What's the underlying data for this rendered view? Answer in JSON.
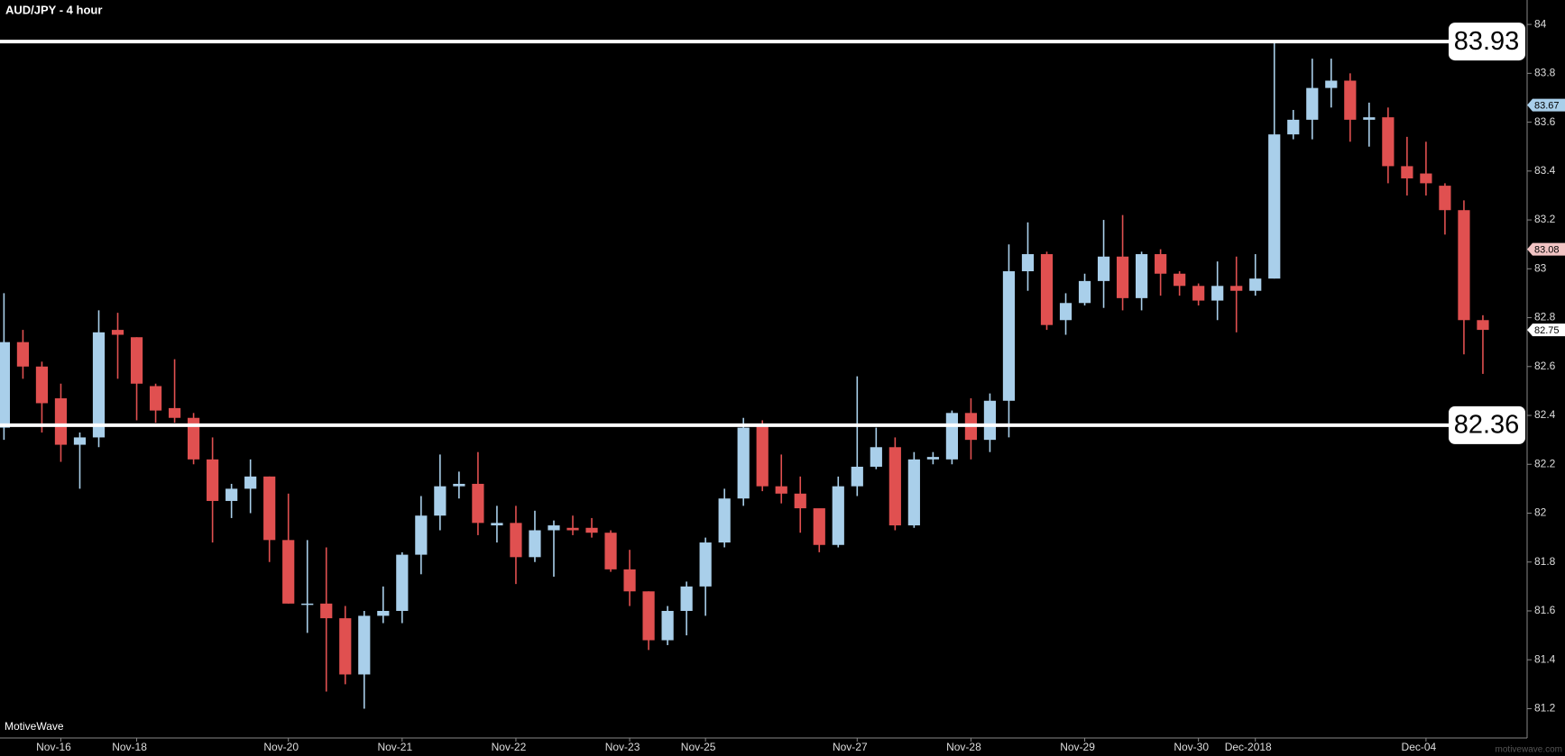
{
  "chart_data": {
    "type": "candlestick",
    "title": "AUD/JPY - 4 hour",
    "watermark": "MotiveWave",
    "credit": "motivewave.com",
    "categories": [
      null,
      null,
      null,
      "Nov-16",
      null,
      null,
      null,
      "Nov-18",
      null,
      null,
      null,
      null,
      null,
      null,
      null,
      "Nov-20",
      null,
      null,
      null,
      null,
      null,
      "Nov-21",
      null,
      null,
      null,
      null,
      null,
      "Nov-22",
      null,
      null,
      null,
      null,
      null,
      "Nov-23",
      null,
      null,
      null,
      "Nov-25",
      null,
      null,
      null,
      null,
      null,
      null,
      null,
      "Nov-27",
      null,
      null,
      null,
      null,
      null,
      "Nov-28",
      null,
      null,
      null,
      null,
      null,
      "Nov-29",
      null,
      null,
      null,
      null,
      null,
      "Nov-30",
      null,
      null,
      "Dec-2018",
      null,
      null,
      null,
      null,
      null,
      null,
      null,
      null,
      "Dec-04",
      null,
      null,
      null
    ],
    "open": [
      82.35,
      82.7,
      82.6,
      82.47,
      82.28,
      82.31,
      82.75,
      82.72,
      82.52,
      82.43,
      82.39,
      82.22,
      82.05,
      82.1,
      82.15,
      81.89,
      81.63,
      81.63,
      81.57,
      81.34,
      81.58,
      81.6,
      81.83,
      81.99,
      82.11,
      82.12,
      81.95,
      81.96,
      81.82,
      81.93,
      81.94,
      81.94,
      81.92,
      81.77,
      81.68,
      81.48,
      81.6,
      81.7,
      81.88,
      82.06,
      82.36,
      82.11,
      82.08,
      82.02,
      81.87,
      82.11,
      82.19,
      82.27,
      81.95,
      82.22,
      82.22,
      82.41,
      82.3,
      82.46,
      82.99,
      83.06,
      82.79,
      82.86,
      82.95,
      83.05,
      82.88,
      83.06,
      82.98,
      82.93,
      82.87,
      82.93,
      82.91,
      82.96,
      83.55,
      83.61,
      83.74,
      83.77,
      83.61,
      83.62,
      83.42,
      83.39,
      83.34,
      83.24,
      82.79
    ],
    "high": [
      82.9,
      82.75,
      82.62,
      82.53,
      82.33,
      82.83,
      82.82,
      82.72,
      82.53,
      82.63,
      82.41,
      82.31,
      82.12,
      82.22,
      82.15,
      82.08,
      81.89,
      81.86,
      81.62,
      81.6,
      81.7,
      81.84,
      82.07,
      82.24,
      82.17,
      82.25,
      82.03,
      82.03,
      82.01,
      81.97,
      81.99,
      81.98,
      81.93,
      81.85,
      81.68,
      81.62,
      81.72,
      81.9,
      82.1,
      82.39,
      82.38,
      82.24,
      82.15,
      82.01,
      82.15,
      82.56,
      82.35,
      82.31,
      82.25,
      82.25,
      82.42,
      82.47,
      82.49,
      83.1,
      83.19,
      83.07,
      82.9,
      82.98,
      83.2,
      83.22,
      83.07,
      83.08,
      82.99,
      82.94,
      83.03,
      83.05,
      83.06,
      83.93,
      83.65,
      83.86,
      83.86,
      83.8,
      83.68,
      83.66,
      83.54,
      83.52,
      83.35,
      83.28,
      82.81
    ],
    "low": [
      82.3,
      82.55,
      82.33,
      82.21,
      82.1,
      82.27,
      82.55,
      82.38,
      82.37,
      82.37,
      82.2,
      81.88,
      81.98,
      82.0,
      81.8,
      81.63,
      81.51,
      81.27,
      81.3,
      81.2,
      81.55,
      81.55,
      81.75,
      81.93,
      82.06,
      81.91,
      81.88,
      81.71,
      81.8,
      81.74,
      81.91,
      81.9,
      81.76,
      81.62,
      81.44,
      81.46,
      81.5,
      81.58,
      81.86,
      82.03,
      82.09,
      82.04,
      81.92,
      81.84,
      81.86,
      82.07,
      82.18,
      81.93,
      81.94,
      82.2,
      82.2,
      82.22,
      82.25,
      82.31,
      82.91,
      82.75,
      82.73,
      82.85,
      82.84,
      82.83,
      82.83,
      82.89,
      82.89,
      82.85,
      82.79,
      82.74,
      82.89,
      82.96,
      83.53,
      83.53,
      83.66,
      83.52,
      83.5,
      83.35,
      83.3,
      83.3,
      83.14,
      82.65,
      82.57
    ],
    "close": [
      82.7,
      82.6,
      82.45,
      82.28,
      82.31,
      82.74,
      82.73,
      82.53,
      82.42,
      82.39,
      82.22,
      82.05,
      82.1,
      82.15,
      81.89,
      81.63,
      81.63,
      81.57,
      81.34,
      81.58,
      81.6,
      81.83,
      81.99,
      82.11,
      82.12,
      81.96,
      81.96,
      81.82,
      81.93,
      81.95,
      81.93,
      81.92,
      81.77,
      81.68,
      81.48,
      81.6,
      81.7,
      81.88,
      82.06,
      82.35,
      82.11,
      82.08,
      82.02,
      81.87,
      82.11,
      82.19,
      82.27,
      81.95,
      82.22,
      82.23,
      82.41,
      82.3,
      82.46,
      82.99,
      83.06,
      82.77,
      82.86,
      82.95,
      83.05,
      82.88,
      83.06,
      82.98,
      82.93,
      82.87,
      82.93,
      82.91,
      82.96,
      83.55,
      83.61,
      83.74,
      83.77,
      83.61,
      83.62,
      83.42,
      83.37,
      83.35,
      83.24,
      82.79,
      82.75
    ],
    "up_color": "#a9cfea",
    "down_color": "#e05050",
    "ylim": [
      81.08,
      84.1
    ],
    "yticks": [
      84,
      83.8,
      83.6,
      83.4,
      83.2,
      83,
      82.8,
      82.6,
      82.4,
      82.2,
      82,
      81.8,
      81.6,
      81.4,
      81.2
    ],
    "levels": [
      83.93,
      82.36
    ],
    "price_tags": [
      {
        "value": 83.67,
        "color": "#a9cfea"
      },
      {
        "value": 83.08,
        "color": "#f2c4c4"
      },
      {
        "value": 82.75,
        "color": "#ffffff"
      }
    ]
  }
}
